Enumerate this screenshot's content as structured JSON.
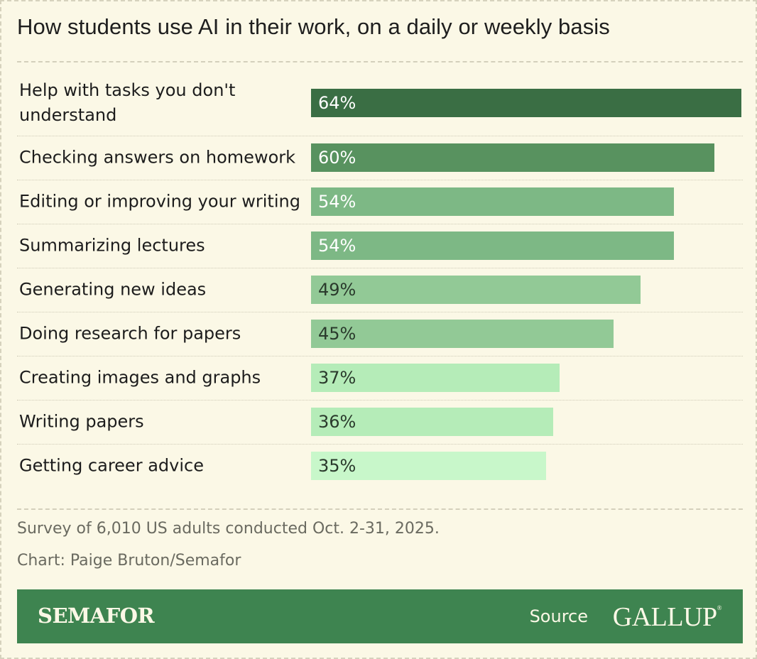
{
  "title": "How students use AI in their work, on a daily or weekly basis",
  "chart_data": {
    "type": "bar",
    "orientation": "horizontal",
    "categories": [
      "Help with tasks you don't understand",
      "Checking answers on homework",
      "Editing or improving your writing",
      "Summarizing lectures",
      "Generating new ideas",
      "Doing research for papers",
      "Creating images and graphs",
      "Writing papers",
      "Getting career advice"
    ],
    "values": [
      64,
      60,
      54,
      54,
      49,
      45,
      37,
      36,
      35
    ],
    "value_labels": [
      "64%",
      "60%",
      "54%",
      "54%",
      "49%",
      "45%",
      "37%",
      "36%",
      "35%"
    ],
    "bar_colors": [
      "#3a6e44",
      "#58925f",
      "#7db885",
      "#7db885",
      "#92c996",
      "#92c996",
      "#b5ecb8",
      "#b5ecb8",
      "#c8f7ca"
    ],
    "label_colors": [
      "#ffffff",
      "#ffffff",
      "#ffffff",
      "#ffffff",
      "#2a3a2c",
      "#2a3a2c",
      "#2a3a2c",
      "#2a3a2c",
      "#2a3a2c"
    ],
    "xlim": [
      0,
      64
    ],
    "grid": false
  },
  "notes": {
    "survey": "Survey of 6,010 US adults conducted Oct. 2-31, 2025.",
    "credit": "Chart: Paige Bruton/Semafor"
  },
  "footer": {
    "brand": "SEMAFOR",
    "source_label": "Source",
    "source_name": "GALLUP",
    "source_mark": "®",
    "background": "#3e8450"
  }
}
